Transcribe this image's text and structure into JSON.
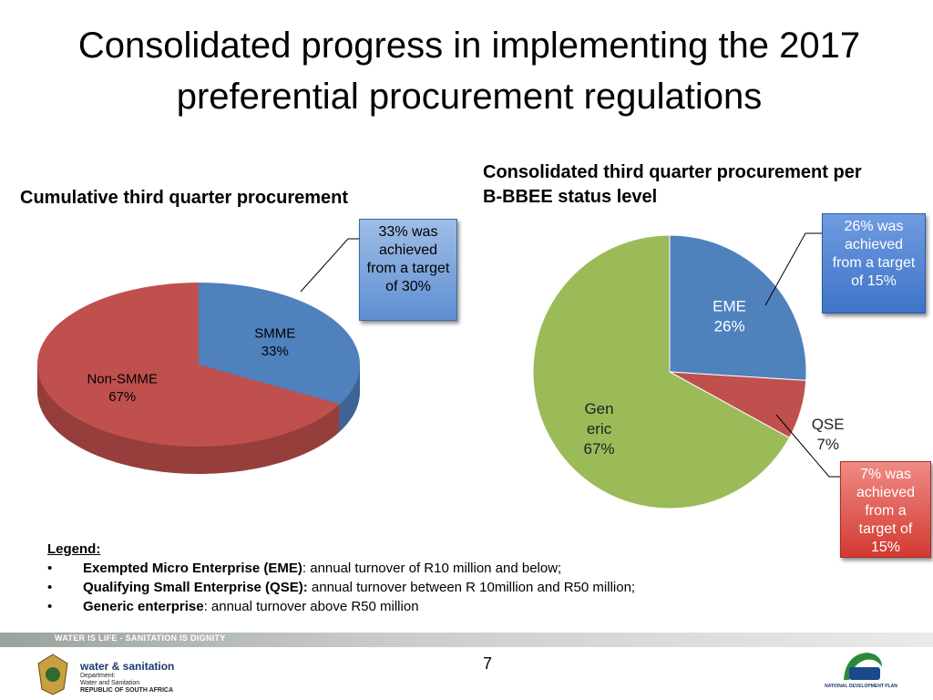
{
  "title": "Consolidated progress in implementing the 2017 preferential procurement regulations",
  "chart_data": [
    {
      "type": "pie3d",
      "title": "Cumulative third quarter procurement",
      "categories": [
        "SMME",
        "Non-SMME"
      ],
      "values": [
        33,
        67
      ],
      "value_labels": [
        "33%",
        "67%"
      ],
      "colors": [
        "#4f81bd",
        "#c0504d"
      ],
      "annotations": [
        "33% was achieved from a target of 30%"
      ]
    },
    {
      "type": "pie",
      "title": "Consolidated third quarter procurement per B-BBEE status level",
      "categories": [
        "EME",
        "QSE",
        "Gen eric"
      ],
      "values": [
        26,
        7,
        67
      ],
      "value_labels": [
        "26%",
        "7%",
        "67%"
      ],
      "colors": [
        "#4f81bd",
        "#c0504d",
        "#9bbb59"
      ],
      "annotations": [
        "26% was achieved from a target of 15%",
        "7% was achieved from a target of 15%"
      ]
    }
  ],
  "legend": {
    "heading": "Legend:",
    "items": [
      {
        "term": "Exempted Micro Enterprise (EME)",
        "text": ": annual turnover of R10 million and below;"
      },
      {
        "term": "Qualifying Small Enterprise (QSE):",
        "text": " annual turnover between R 10million and R50 million;"
      },
      {
        "term": "Generic enterprise",
        "text": ": annual turnover above R50 million"
      }
    ]
  },
  "footer": {
    "banner": "WATER IS LIFE - SANITATION IS DIGNITY",
    "page": "7",
    "dept_name": "water & sanitation",
    "dept_lines": [
      "Department:",
      "Water and Sanitation",
      "REPUBLIC OF SOUTH AFRICA"
    ],
    "ndp": "NATIONAL DEVELOPMENT PLAN"
  }
}
